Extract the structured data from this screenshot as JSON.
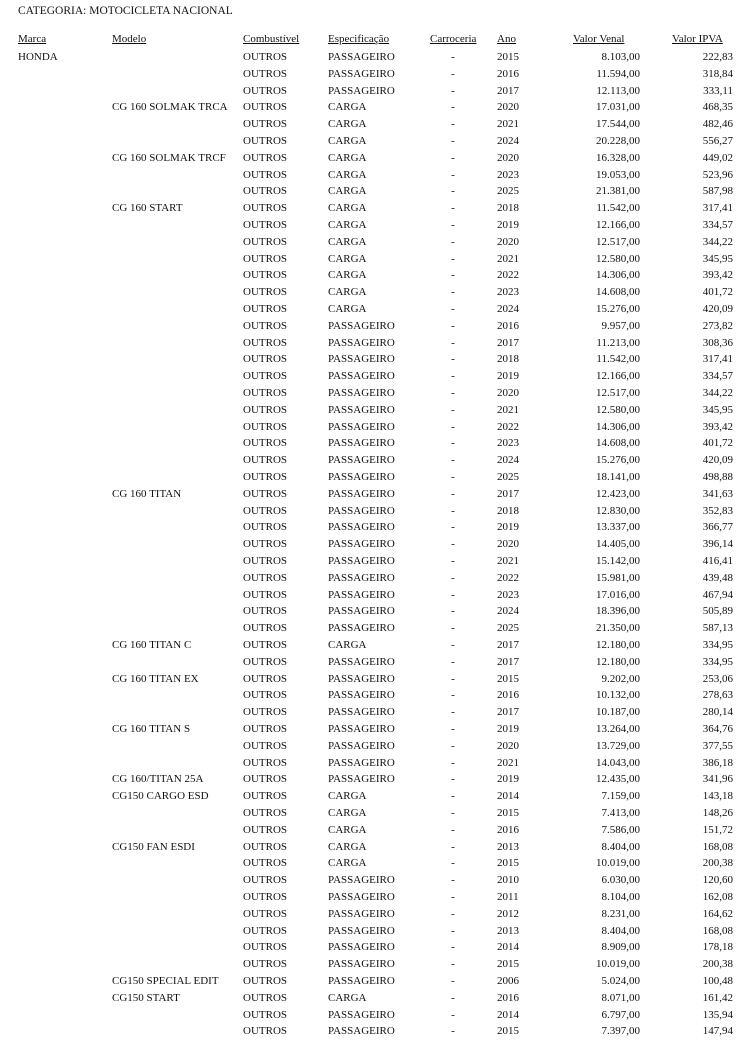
{
  "title": "CATEGORIA: MOTOCICLETA NACIONAL",
  "columns": [
    "Marca",
    "Modelo",
    "Combustível",
    "Especificação",
    "Carroceria",
    "Ano",
    "Valor Venal",
    "Valor IPVA"
  ],
  "rows": [
    [
      "HONDA",
      "",
      "OUTROS",
      "PASSAGEIRO",
      "-",
      "2015",
      "8.103,00",
      "222,83"
    ],
    [
      "",
      "",
      "OUTROS",
      "PASSAGEIRO",
      "-",
      "2016",
      "11.594,00",
      "318,84"
    ],
    [
      "",
      "",
      "OUTROS",
      "PASSAGEIRO",
      "-",
      "2017",
      "12.113,00",
      "333,11"
    ],
    [
      "",
      "CG 160 SOLMAK TRCA",
      "OUTROS",
      "CARGA",
      "-",
      "2020",
      "17.031,00",
      "468,35"
    ],
    [
      "",
      "",
      "OUTROS",
      "CARGA",
      "-",
      "2021",
      "17.544,00",
      "482,46"
    ],
    [
      "",
      "",
      "OUTROS",
      "CARGA",
      "-",
      "2024",
      "20.228,00",
      "556,27"
    ],
    [
      "",
      "CG 160 SOLMAK TRCF",
      "OUTROS",
      "CARGA",
      "-",
      "2020",
      "16.328,00",
      "449,02"
    ],
    [
      "",
      "",
      "OUTROS",
      "CARGA",
      "-",
      "2023",
      "19.053,00",
      "523,96"
    ],
    [
      "",
      "",
      "OUTROS",
      "CARGA",
      "-",
      "2025",
      "21.381,00",
      "587,98"
    ],
    [
      "",
      "CG 160 START",
      "OUTROS",
      "CARGA",
      "-",
      "2018",
      "11.542,00",
      "317,41"
    ],
    [
      "",
      "",
      "OUTROS",
      "CARGA",
      "-",
      "2019",
      "12.166,00",
      "334,57"
    ],
    [
      "",
      "",
      "OUTROS",
      "CARGA",
      "-",
      "2020",
      "12.517,00",
      "344,22"
    ],
    [
      "",
      "",
      "OUTROS",
      "CARGA",
      "-",
      "2021",
      "12.580,00",
      "345,95"
    ],
    [
      "",
      "",
      "OUTROS",
      "CARGA",
      "-",
      "2022",
      "14.306,00",
      "393,42"
    ],
    [
      "",
      "",
      "OUTROS",
      "CARGA",
      "-",
      "2023",
      "14.608,00",
      "401,72"
    ],
    [
      "",
      "",
      "OUTROS",
      "CARGA",
      "-",
      "2024",
      "15.276,00",
      "420,09"
    ],
    [
      "",
      "",
      "OUTROS",
      "PASSAGEIRO",
      "-",
      "2016",
      "9.957,00",
      "273,82"
    ],
    [
      "",
      "",
      "OUTROS",
      "PASSAGEIRO",
      "-",
      "2017",
      "11.213,00",
      "308,36"
    ],
    [
      "",
      "",
      "OUTROS",
      "PASSAGEIRO",
      "-",
      "2018",
      "11.542,00",
      "317,41"
    ],
    [
      "",
      "",
      "OUTROS",
      "PASSAGEIRO",
      "-",
      "2019",
      "12.166,00",
      "334,57"
    ],
    [
      "",
      "",
      "OUTROS",
      "PASSAGEIRO",
      "-",
      "2020",
      "12.517,00",
      "344,22"
    ],
    [
      "",
      "",
      "OUTROS",
      "PASSAGEIRO",
      "-",
      "2021",
      "12.580,00",
      "345,95"
    ],
    [
      "",
      "",
      "OUTROS",
      "PASSAGEIRO",
      "-",
      "2022",
      "14.306,00",
      "393,42"
    ],
    [
      "",
      "",
      "OUTROS",
      "PASSAGEIRO",
      "-",
      "2023",
      "14.608,00",
      "401,72"
    ],
    [
      "",
      "",
      "OUTROS",
      "PASSAGEIRO",
      "-",
      "2024",
      "15.276,00",
      "420,09"
    ],
    [
      "",
      "",
      "OUTROS",
      "PASSAGEIRO",
      "-",
      "2025",
      "18.141,00",
      "498,88"
    ],
    [
      "",
      "CG 160 TITAN",
      "OUTROS",
      "PASSAGEIRO",
      "-",
      "2017",
      "12.423,00",
      "341,63"
    ],
    [
      "",
      "",
      "OUTROS",
      "PASSAGEIRO",
      "-",
      "2018",
      "12.830,00",
      "352,83"
    ],
    [
      "",
      "",
      "OUTROS",
      "PASSAGEIRO",
      "-",
      "2019",
      "13.337,00",
      "366,77"
    ],
    [
      "",
      "",
      "OUTROS",
      "PASSAGEIRO",
      "-",
      "2020",
      "14.405,00",
      "396,14"
    ],
    [
      "",
      "",
      "OUTROS",
      "PASSAGEIRO",
      "-",
      "2021",
      "15.142,00",
      "416,41"
    ],
    [
      "",
      "",
      "OUTROS",
      "PASSAGEIRO",
      "-",
      "2022",
      "15.981,00",
      "439,48"
    ],
    [
      "",
      "",
      "OUTROS",
      "PASSAGEIRO",
      "-",
      "2023",
      "17.016,00",
      "467,94"
    ],
    [
      "",
      "",
      "OUTROS",
      "PASSAGEIRO",
      "-",
      "2024",
      "18.396,00",
      "505,89"
    ],
    [
      "",
      "",
      "OUTROS",
      "PASSAGEIRO",
      "-",
      "2025",
      "21.350,00",
      "587,13"
    ],
    [
      "",
      "CG 160 TITAN C",
      "OUTROS",
      "CARGA",
      "-",
      "2017",
      "12.180,00",
      "334,95"
    ],
    [
      "",
      "",
      "OUTROS",
      "PASSAGEIRO",
      "-",
      "2017",
      "12.180,00",
      "334,95"
    ],
    [
      "",
      "CG 160 TITAN EX",
      "OUTROS",
      "PASSAGEIRO",
      "-",
      "2015",
      "9.202,00",
      "253,06"
    ],
    [
      "",
      "",
      "OUTROS",
      "PASSAGEIRO",
      "-",
      "2016",
      "10.132,00",
      "278,63"
    ],
    [
      "",
      "",
      "OUTROS",
      "PASSAGEIRO",
      "-",
      "2017",
      "10.187,00",
      "280,14"
    ],
    [
      "",
      "CG 160 TITAN S",
      "OUTROS",
      "PASSAGEIRO",
      "-",
      "2019",
      "13.264,00",
      "364,76"
    ],
    [
      "",
      "",
      "OUTROS",
      "PASSAGEIRO",
      "-",
      "2020",
      "13.729,00",
      "377,55"
    ],
    [
      "",
      "",
      "OUTROS",
      "PASSAGEIRO",
      "-",
      "2021",
      "14.043,00",
      "386,18"
    ],
    [
      "",
      "CG 160/TITAN 25A",
      "OUTROS",
      "PASSAGEIRO",
      "-",
      "2019",
      "12.435,00",
      "341,96"
    ],
    [
      "",
      "CG150 CARGO ESD",
      "OUTROS",
      "CARGA",
      "-",
      "2014",
      "7.159,00",
      "143,18"
    ],
    [
      "",
      "",
      "OUTROS",
      "CARGA",
      "-",
      "2015",
      "7.413,00",
      "148,26"
    ],
    [
      "",
      "",
      "OUTROS",
      "CARGA",
      "-",
      "2016",
      "7.586,00",
      "151,72"
    ],
    [
      "",
      "CG150 FAN ESDI",
      "OUTROS",
      "CARGA",
      "-",
      "2013",
      "8.404,00",
      "168,08"
    ],
    [
      "",
      "",
      "OUTROS",
      "CARGA",
      "-",
      "2015",
      "10.019,00",
      "200,38"
    ],
    [
      "",
      "",
      "OUTROS",
      "PASSAGEIRO",
      "-",
      "2010",
      "6.030,00",
      "120,60"
    ],
    [
      "",
      "",
      "OUTROS",
      "PASSAGEIRO",
      "-",
      "2011",
      "8.104,00",
      "162,08"
    ],
    [
      "",
      "",
      "OUTROS",
      "PASSAGEIRO",
      "-",
      "2012",
      "8.231,00",
      "164,62"
    ],
    [
      "",
      "",
      "OUTROS",
      "PASSAGEIRO",
      "-",
      "2013",
      "8.404,00",
      "168,08"
    ],
    [
      "",
      "",
      "OUTROS",
      "PASSAGEIRO",
      "-",
      "2014",
      "8.909,00",
      "178,18"
    ],
    [
      "",
      "",
      "OUTROS",
      "PASSAGEIRO",
      "-",
      "2015",
      "10.019,00",
      "200,38"
    ],
    [
      "",
      "CG150 SPECIAL EDIT",
      "OUTROS",
      "PASSAGEIRO",
      "-",
      "2006",
      "5.024,00",
      "100,48"
    ],
    [
      "",
      "CG150 START",
      "OUTROS",
      "CARGA",
      "-",
      "2016",
      "8.071,00",
      "161,42"
    ],
    [
      "",
      "",
      "OUTROS",
      "PASSAGEIRO",
      "-",
      "2014",
      "6.797,00",
      "135,94"
    ],
    [
      "",
      "",
      "OUTROS",
      "PASSAGEIRO",
      "-",
      "2015",
      "7.397,00",
      "147,94"
    ]
  ]
}
